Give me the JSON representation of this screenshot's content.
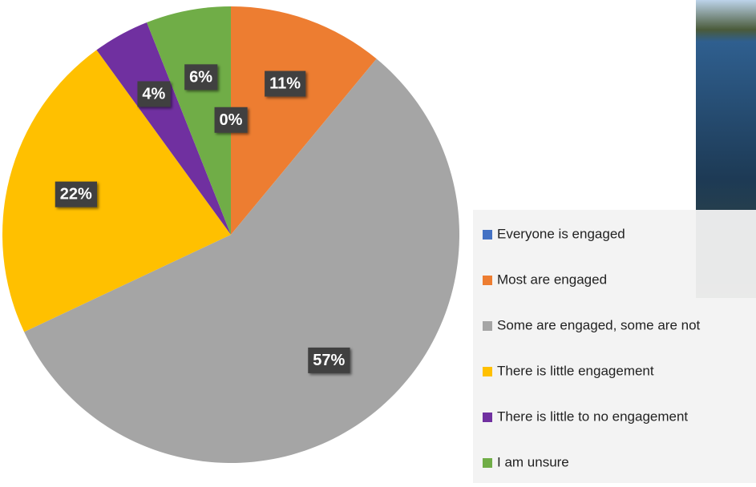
{
  "chart_data": {
    "type": "pie",
    "categories": [
      "Everyone is engaged",
      "Most are engaged",
      "Some are engaged, some are not",
      "There is little engagement",
      "There is little to no engagement",
      "I am unsure"
    ],
    "values": [
      0,
      11,
      57,
      22,
      4,
      6
    ],
    "value_labels": [
      "0%",
      "11%",
      "57%",
      "22%",
      "4%",
      "6%"
    ],
    "colors": [
      "#4472c4",
      "#ed7d31",
      "#a5a5a5",
      "#ffc000",
      "#7030a0",
      "#70ad47"
    ],
    "legend": "right"
  }
}
